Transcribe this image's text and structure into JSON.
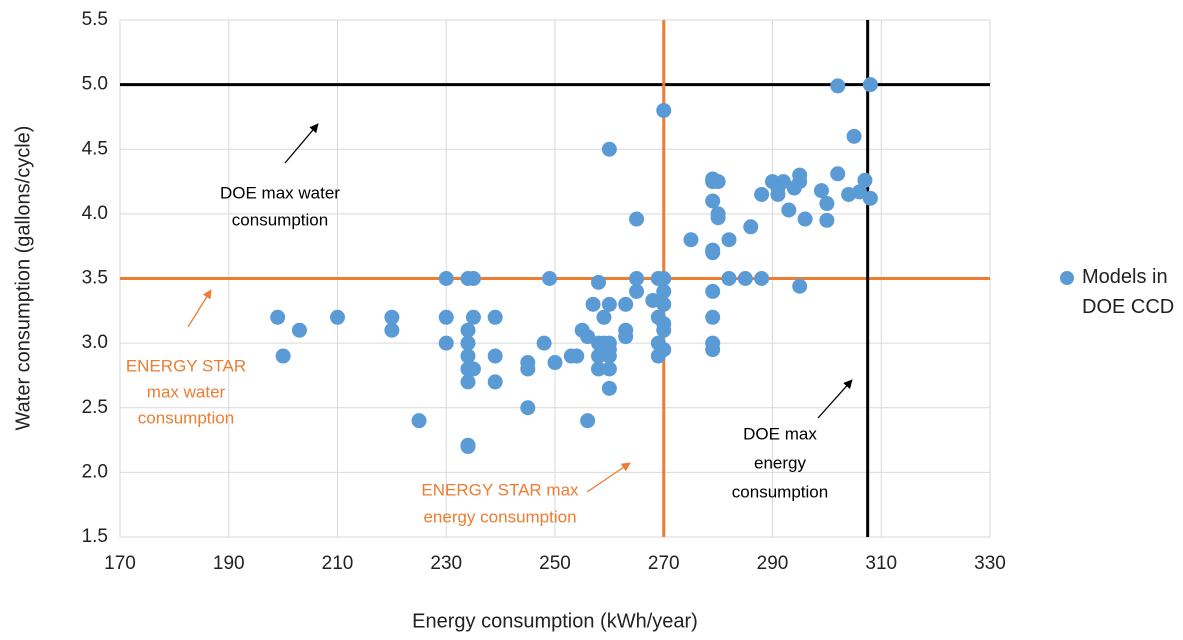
{
  "chart_data": {
    "type": "scatter",
    "x_label": "Energy consumption (kWh/year)",
    "y_label": "Water consumption (gallons/cycle)",
    "xlim": [
      170,
      330
    ],
    "ylim": [
      1.5,
      5.5
    ],
    "xticks": [
      170,
      190,
      210,
      230,
      250,
      270,
      290,
      310,
      330
    ],
    "yticks": [
      1.5,
      {
        "value": 2,
        "label": "2.0"
      },
      2.5,
      {
        "value": 3,
        "label": "3.0"
      },
      3.5,
      {
        "value": 4,
        "label": "4.0"
      },
      4.5,
      {
        "value": 5,
        "label": "5.0"
      },
      5.5
    ],
    "grid": true,
    "legend": "right",
    "series": [
      {
        "name": "Models in DOE CCD",
        "color": "#5b9bd5",
        "x": [
          199,
          200,
          203,
          210,
          220,
          220,
          225,
          230,
          230,
          230,
          234,
          235,
          234,
          234,
          234,
          234,
          235,
          234,
          234,
          234,
          235,
          239,
          239,
          239,
          245,
          245,
          245,
          248,
          249,
          250,
          253,
          254,
          255,
          256,
          256,
          257,
          258,
          258,
          258,
          258,
          259,
          259,
          260,
          260,
          260,
          260,
          260,
          260,
          260,
          263,
          263,
          263,
          265,
          265,
          265,
          268,
          269,
          269,
          269,
          269,
          270,
          270,
          270,
          270,
          270,
          270,
          270,
          275,
          279,
          279,
          279,
          279,
          279,
          279,
          279,
          279,
          279,
          280,
          280,
          280,
          282,
          282,
          285,
          286,
          288,
          288,
          290,
          291,
          291,
          292,
          293,
          294,
          295,
          295,
          295,
          296,
          299,
          300,
          300,
          302,
          302,
          304,
          305,
          306,
          307,
          308,
          308
        ],
        "values": [
          3.2,
          2.9,
          3.1,
          3.2,
          3.2,
          3.1,
          2.4,
          3.5,
          3.2,
          3.0,
          3.5,
          3.5,
          3.1,
          3.0,
          2.9,
          2.8,
          2.8,
          2.7,
          2.2,
          2.21,
          3.2,
          3.2,
          2.9,
          2.7,
          2.85,
          2.8,
          2.5,
          3.0,
          3.5,
          2.85,
          2.9,
          2.9,
          3.1,
          3.05,
          2.4,
          3.3,
          3.47,
          3.0,
          2.9,
          2.8,
          3.2,
          3.0,
          4.5,
          3.3,
          3.0,
          2.95,
          2.9,
          2.8,
          2.65,
          3.3,
          3.1,
          3.05,
          3.96,
          3.5,
          3.4,
          3.33,
          3.5,
          3.2,
          3.0,
          2.9,
          4.8,
          3.5,
          3.4,
          3.3,
          3.15,
          3.1,
          2.95,
          3.8,
          4.27,
          4.25,
          4.1,
          3.72,
          3.7,
          3.4,
          3.2,
          3.0,
          2.95,
          4.25,
          4.0,
          3.97,
          3.8,
          3.5,
          3.5,
          3.9,
          4.15,
          3.5,
          4.25,
          4.2,
          4.15,
          4.25,
          4.03,
          4.2,
          4.3,
          4.25,
          3.44,
          3.96,
          4.18,
          4.08,
          3.95,
          4.99,
          4.31,
          4.15,
          4.6,
          4.17,
          4.26,
          5.0,
          4.12
        ]
      }
    ],
    "reference_lines": [
      {
        "axis": "y",
        "value": 5,
        "color": "#000000"
      },
      {
        "axis": "y",
        "value": 3.5,
        "color": "#ed7d31"
      },
      {
        "axis": "x",
        "value": 270,
        "color": "#ed7d31"
      },
      {
        "axis": "x",
        "value": 307.5,
        "color": "#000000"
      }
    ],
    "annotations": [
      {
        "lines": [
          "DOE max water",
          "consumption"
        ],
        "color": "#000000"
      },
      {
        "lines": [
          "ENERGY STAR",
          "max water",
          "consumption"
        ],
        "color": "#ed7d31"
      },
      {
        "lines": [
          "ENERGY STAR max",
          "energy consumption"
        ],
        "color": "#ed7d31"
      },
      {
        "lines": [
          "DOE max",
          "energy",
          "consumption"
        ],
        "color": "#000000"
      }
    ]
  }
}
